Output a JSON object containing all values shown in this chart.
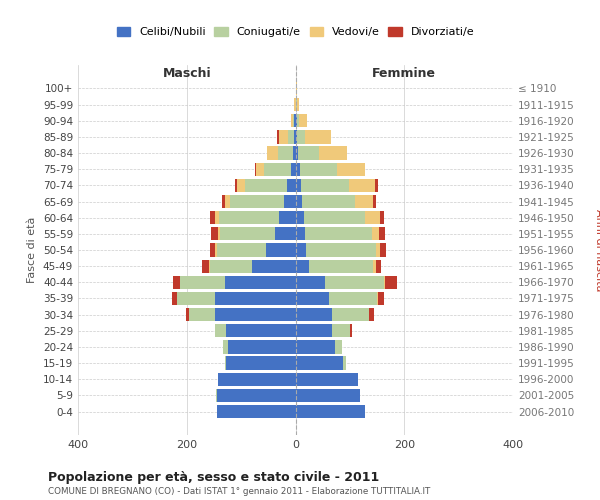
{
  "age_groups": [
    "100+",
    "95-99",
    "90-94",
    "85-89",
    "80-84",
    "75-79",
    "70-74",
    "65-69",
    "60-64",
    "55-59",
    "50-54",
    "45-49",
    "40-44",
    "35-39",
    "30-34",
    "25-29",
    "20-24",
    "15-19",
    "10-14",
    "5-9",
    "0-4"
  ],
  "birth_years": [
    "≤ 1910",
    "1911-1915",
    "1916-1920",
    "1921-1925",
    "1926-1930",
    "1931-1935",
    "1936-1940",
    "1941-1945",
    "1946-1950",
    "1951-1955",
    "1956-1960",
    "1961-1965",
    "1966-1970",
    "1971-1975",
    "1976-1980",
    "1981-1985",
    "1986-1990",
    "1991-1995",
    "1996-2000",
    "2001-2005",
    "2006-2010"
  ],
  "colors": {
    "celibi": "#4472c4",
    "coniugati": "#b8d0a0",
    "vedovi": "#f0c97a",
    "divorziati": "#c0392b"
  },
  "maschi": {
    "celibi": [
      0,
      0,
      2,
      3,
      5,
      8,
      15,
      22,
      30,
      38,
      55,
      80,
      130,
      148,
      148,
      128,
      125,
      128,
      142,
      145,
      145
    ],
    "coniugati": [
      0,
      0,
      2,
      10,
      28,
      50,
      78,
      98,
      110,
      100,
      90,
      78,
      82,
      70,
      48,
      20,
      8,
      2,
      0,
      2,
      0
    ],
    "vedovi": [
      0,
      2,
      5,
      18,
      20,
      14,
      14,
      10,
      8,
      5,
      3,
      2,
      1,
      0,
      0,
      0,
      0,
      0,
      0,
      0,
      0
    ],
    "divorziati": [
      0,
      0,
      0,
      3,
      0,
      3,
      5,
      5,
      10,
      12,
      10,
      12,
      12,
      10,
      5,
      0,
      0,
      0,
      0,
      0,
      0
    ]
  },
  "femmine": {
    "celibi": [
      0,
      0,
      2,
      2,
      5,
      8,
      10,
      12,
      15,
      18,
      20,
      25,
      55,
      62,
      68,
      68,
      72,
      88,
      115,
      118,
      128
    ],
    "coniugati": [
      0,
      2,
      5,
      15,
      38,
      68,
      88,
      98,
      112,
      122,
      128,
      118,
      108,
      88,
      68,
      33,
      14,
      5,
      0,
      0,
      0
    ],
    "vedovi": [
      2,
      5,
      15,
      48,
      52,
      52,
      48,
      33,
      28,
      14,
      8,
      5,
      2,
      2,
      0,
      0,
      0,
      0,
      0,
      0,
      0
    ],
    "divorziati": [
      0,
      0,
      0,
      0,
      0,
      0,
      5,
      5,
      8,
      10,
      10,
      10,
      22,
      10,
      8,
      2,
      0,
      0,
      0,
      0,
      0
    ]
  },
  "title": "Popolazione per età, sesso e stato civile - 2011",
  "subtitle": "COMUNE DI BREGNANO (CO) - Dati ISTAT 1° gennaio 2011 - Elaborazione TUTTITALIA.IT",
  "xlabel_left": "Maschi",
  "xlabel_right": "Femmine",
  "ylabel_left": "Fasce di età",
  "ylabel_right": "Anni di nascita",
  "legend_labels": [
    "Celibi/Nubili",
    "Coniugati/e",
    "Vedovi/e",
    "Divorziati/e"
  ],
  "xlim": 400,
  "background_color": "#ffffff",
  "grid_color": "#cccccc"
}
